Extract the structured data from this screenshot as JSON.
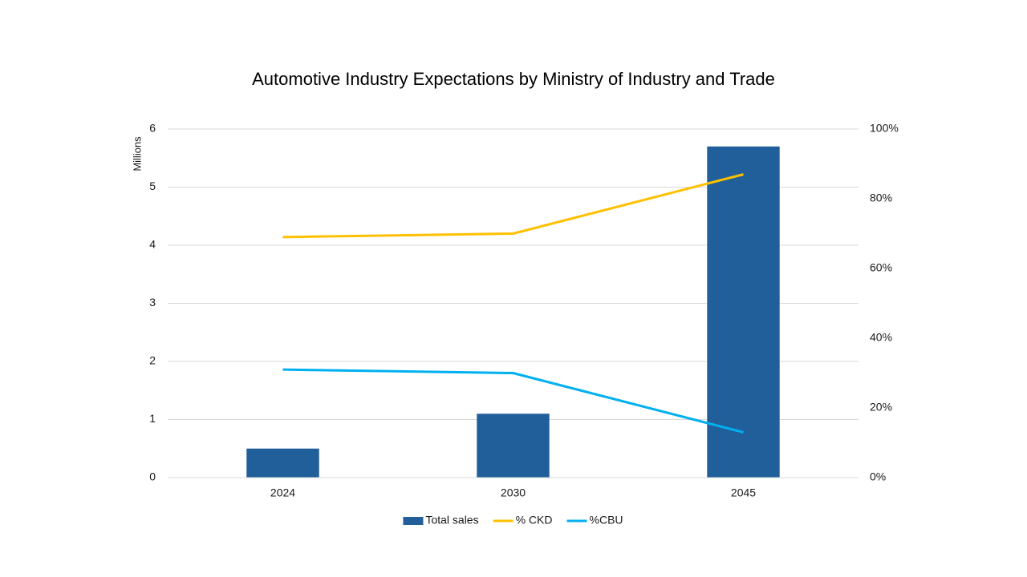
{
  "chart_data": {
    "type": "bar",
    "title": "Automotive Industry Expectations by Ministry of Industry and Trade",
    "y_label": "Millions",
    "categories": [
      "2024",
      "2030",
      "2045"
    ],
    "series": [
      {
        "name": "Total sales",
        "type": "bar",
        "color": "#215f9a",
        "values": [
          0.5,
          1.1,
          5.7
        ]
      },
      {
        "name": "% CKD",
        "type": "line",
        "axis": "y2",
        "color": "#ffc000",
        "values": [
          69,
          70,
          87
        ]
      },
      {
        "name": "%CBU",
        "type": "line",
        "axis": "y2",
        "color": "#00b0f0",
        "values": [
          31,
          30,
          13
        ]
      }
    ],
    "ylim": [
      0,
      6
    ],
    "yticks": [
      0,
      1,
      2,
      3,
      4,
      5,
      6
    ],
    "y2lim": [
      0,
      100
    ],
    "y2ticks": [
      {
        "value": 0,
        "label": "0%"
      },
      {
        "value": 20,
        "label": "20%"
      },
      {
        "value": 40,
        "label": "40%"
      },
      {
        "value": 60,
        "label": "60%"
      },
      {
        "value": 80,
        "label": "80%"
      },
      {
        "value": 100,
        "label": "100%"
      }
    ],
    "grid": true,
    "legend": "bottom"
  }
}
